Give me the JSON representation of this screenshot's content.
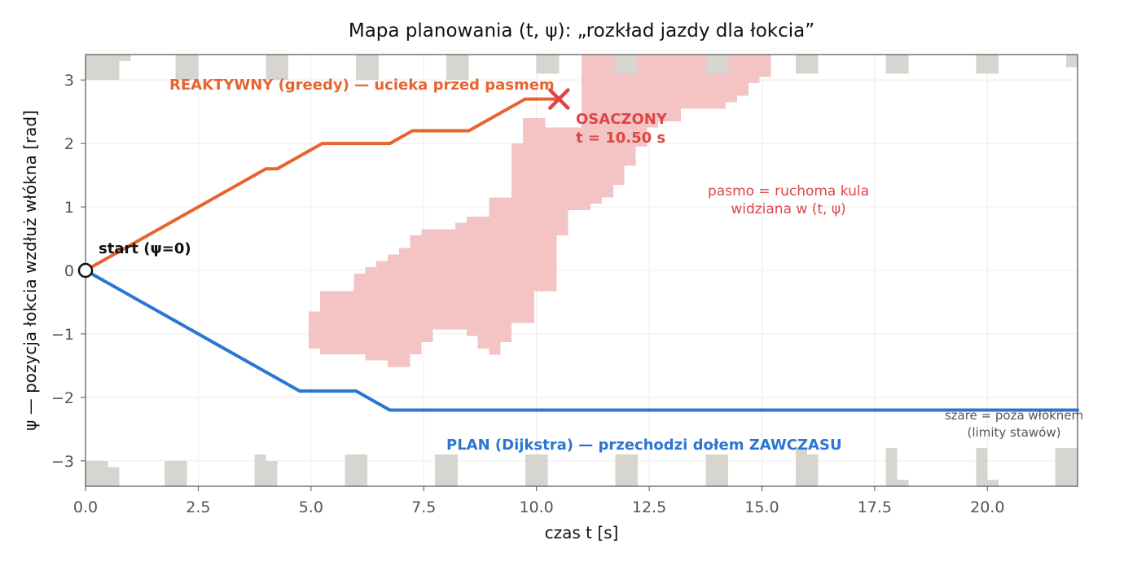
{
  "chart_data": {
    "type": "line",
    "title": "Mapa planowania (t, ψ): „rozkład jazdy dla łokcia”",
    "xlabel": "czas t [s]",
    "ylabel": "ψ — pozycja łokcia wzdłuż włókna [rad]",
    "xlim": [
      0,
      22
    ],
    "ylim": [
      -3.4,
      3.4
    ],
    "xticks": [
      0,
      2.5,
      5,
      7.5,
      10,
      12.5,
      15,
      17.5,
      20
    ],
    "xtick_labels": [
      "0.0",
      "2.5",
      "5.0",
      "7.5",
      "10.0",
      "12.5",
      "15.0",
      "17.5",
      "20.0"
    ],
    "yticks": [
      -3,
      -2,
      -1,
      0,
      1,
      2,
      3
    ],
    "ytick_labels": [
      "−3",
      "−2",
      "−1",
      "0",
      "1",
      "2",
      "3"
    ],
    "grid": true,
    "colors": {
      "reactive": "#e8642f",
      "plan": "#2a76d2",
      "band": "#f4c4c4",
      "gray": "#d6d5d0",
      "crash": "#e04545",
      "start": "#111111"
    },
    "series": [
      {
        "name": "REAKTYWNY (greedy) — ucieka przed pasmem",
        "x": [
          0,
          4.0,
          4.25,
          5.25,
          6.75,
          7.25,
          8.5,
          9.75,
          10.5
        ],
        "y": [
          0,
          1.6,
          1.6,
          2.0,
          2.0,
          2.2,
          2.2,
          2.7,
          2.7
        ]
      },
      {
        "name": "PLAN (Dijkstra) — przechodzi dołem ZAWCZASU",
        "x": [
          0,
          4.75,
          6.0,
          6.75,
          22
        ],
        "y": [
          0,
          -1.9,
          -1.9,
          -2.2,
          -2.2
        ]
      }
    ],
    "band_columns": [
      [
        4.95,
        5.2,
        -1.23,
        -0.65
      ],
      [
        5.2,
        5.95,
        -1.32,
        -0.33
      ],
      [
        5.95,
        6.2,
        -1.32,
        -0.05
      ],
      [
        6.2,
        6.45,
        -1.42,
        0.05
      ],
      [
        6.45,
        6.7,
        -1.42,
        0.15
      ],
      [
        6.7,
        6.95,
        -1.52,
        0.25
      ],
      [
        6.95,
        7.2,
        -1.52,
        0.35
      ],
      [
        7.2,
        7.45,
        -1.32,
        0.55
      ],
      [
        7.45,
        7.7,
        -1.13,
        0.65
      ],
      [
        7.7,
        8.2,
        -0.93,
        0.65
      ],
      [
        8.2,
        8.45,
        -0.93,
        0.75
      ],
      [
        8.45,
        8.7,
        -1.03,
        0.85
      ],
      [
        8.7,
        8.95,
        -1.23,
        0.85
      ],
      [
        8.95,
        9.2,
        -1.33,
        1.15
      ],
      [
        9.2,
        9.45,
        -1.13,
        1.15
      ],
      [
        9.45,
        9.7,
        -0.83,
        2.0
      ],
      [
        9.7,
        9.95,
        -0.83,
        2.4
      ],
      [
        9.95,
        10.2,
        -0.33,
        2.4
      ],
      [
        10.2,
        10.45,
        -0.33,
        2.25
      ],
      [
        10.45,
        10.7,
        0.55,
        2.25
      ],
      [
        10.7,
        11.0,
        0.95,
        2.25
      ],
      [
        11.0,
        11.2,
        0.95,
        3.4
      ],
      [
        11.2,
        11.45,
        1.05,
        3.4
      ],
      [
        11.45,
        11.7,
        1.15,
        3.4
      ],
      [
        11.7,
        11.95,
        1.35,
        3.4
      ],
      [
        11.95,
        12.2,
        1.65,
        3.4
      ],
      [
        12.2,
        12.45,
        1.95,
        3.4
      ],
      [
        12.45,
        12.7,
        2.25,
        3.4
      ],
      [
        12.7,
        13.2,
        2.35,
        3.4
      ],
      [
        13.2,
        13.7,
        2.55,
        3.4
      ],
      [
        13.7,
        14.2,
        2.55,
        3.4
      ],
      [
        14.2,
        14.45,
        2.65,
        3.4
      ],
      [
        14.45,
        14.7,
        2.75,
        3.4
      ],
      [
        14.7,
        14.95,
        2.95,
        3.4
      ],
      [
        14.95,
        15.2,
        3.05,
        3.4
      ]
    ],
    "gray_blocks": [
      [
        0.0,
        0.75,
        3.0,
        3.4
      ],
      [
        0.75,
        1.0,
        3.3,
        3.4
      ],
      [
        2.0,
        2.5,
        3.0,
        3.4
      ],
      [
        4.0,
        4.5,
        3.0,
        3.4
      ],
      [
        6.0,
        6.5,
        3.0,
        3.4
      ],
      [
        8.0,
        8.5,
        3.0,
        3.4
      ],
      [
        10.0,
        10.5,
        3.1,
        3.4
      ],
      [
        11.75,
        12.25,
        3.1,
        3.4
      ],
      [
        13.75,
        14.25,
        3.1,
        3.4
      ],
      [
        15.75,
        16.25,
        3.1,
        3.4
      ],
      [
        17.75,
        18.25,
        3.1,
        3.4
      ],
      [
        19.75,
        20.25,
        3.1,
        3.4
      ],
      [
        21.75,
        22.0,
        3.2,
        3.4
      ],
      [
        0.0,
        0.5,
        -3.4,
        -3.0
      ],
      [
        0.5,
        0.75,
        -3.4,
        -3.1
      ],
      [
        1.75,
        2.25,
        -3.4,
        -3.0
      ],
      [
        3.75,
        4.0,
        -3.4,
        -2.9
      ],
      [
        4.0,
        4.25,
        -3.4,
        -3.0
      ],
      [
        5.75,
        6.25,
        -3.4,
        -2.9
      ],
      [
        7.75,
        8.25,
        -3.4,
        -2.9
      ],
      [
        9.75,
        10.25,
        -3.4,
        -2.9
      ],
      [
        11.75,
        12.25,
        -3.4,
        -2.9
      ],
      [
        13.75,
        14.25,
        -3.4,
        -2.9
      ],
      [
        15.75,
        16.0,
        -3.4,
        -2.8
      ],
      [
        16.0,
        16.25,
        -3.4,
        -2.9
      ],
      [
        17.75,
        18.0,
        -3.4,
        -2.8
      ],
      [
        18.0,
        18.25,
        -3.4,
        -3.3
      ],
      [
        19.75,
        20.0,
        -3.4,
        -2.8
      ],
      [
        20.0,
        20.25,
        -3.4,
        -3.3
      ],
      [
        21.5,
        22.0,
        -3.4,
        -2.8
      ]
    ],
    "start": {
      "x": 0,
      "y": 0,
      "label": "start (ψ=0)"
    },
    "crash": {
      "x": 10.5,
      "y": 2.7,
      "label_line1": "OSACZONY",
      "label_line2": "t = 10.50 s"
    },
    "annotations": {
      "reactive_label": "REAKTYWNY (greedy) — ucieka przed pasmem",
      "plan_label": "PLAN (Dijkstra) — przechodzi dołem ZAWCZASU",
      "band_note_line1": "pasmo = ruchoma kula",
      "band_note_line2": "widziana w (t, ψ)",
      "gray_note_line1": "szare = poza włóknem",
      "gray_note_line2": "(limity stawów)"
    }
  }
}
